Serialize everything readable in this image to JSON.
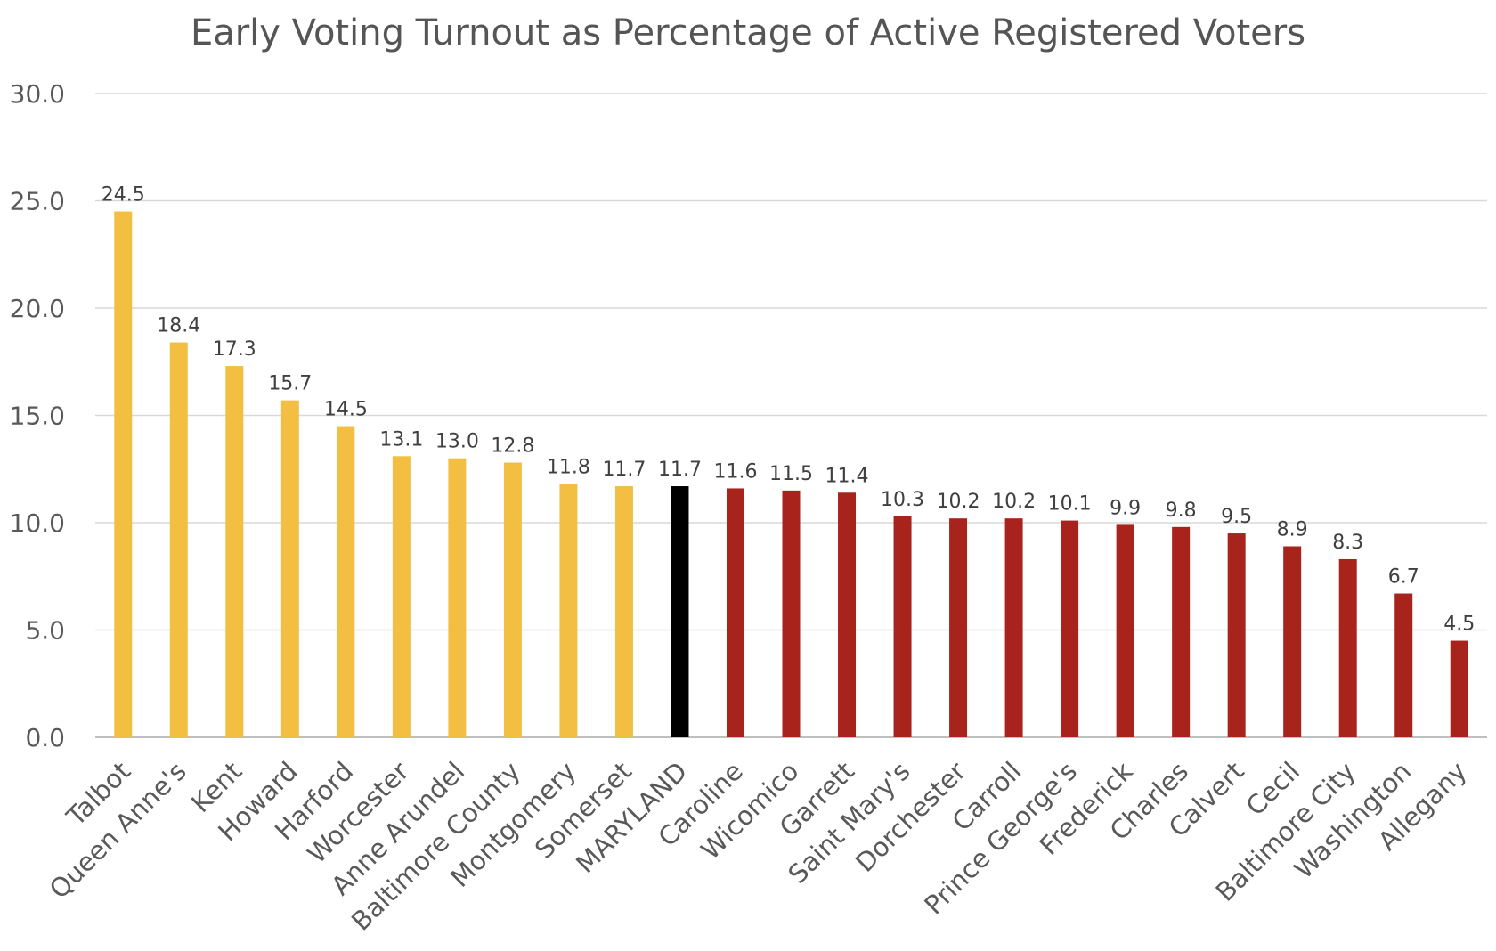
{
  "chart_data": {
    "type": "bar",
    "title": "Early Voting Turnout as Percentage of Active Registered Voters",
    "xlabel": "",
    "ylabel": "",
    "ylim": [
      0,
      30
    ],
    "yticks": [
      "0.0",
      "5.0",
      "10.0",
      "15.0",
      "20.0",
      "25.0",
      "30.0"
    ],
    "grid": true,
    "legend": "none",
    "colors": {
      "above_state": "#F2BF43",
      "state": "#000000",
      "below_state": "#A8231C"
    },
    "categories": [
      "Talbot",
      "Queen Anne's",
      "Kent",
      "Howard",
      "Harford",
      "Worcester",
      "Anne Arundel",
      "Baltimore County",
      "Montgomery",
      "Somerset",
      "MARYLAND",
      "Caroline",
      "Wicomico",
      "Garrett",
      "Saint Mary's",
      "Dorchester",
      "Carroll",
      "Prince George's",
      "Frederick",
      "Charles",
      "Calvert",
      "Cecil",
      "Baltimore City",
      "Washington",
      "Allegany"
    ],
    "values": [
      24.5,
      18.4,
      17.3,
      15.7,
      14.5,
      13.1,
      13.0,
      12.8,
      11.8,
      11.7,
      11.7,
      11.6,
      11.5,
      11.4,
      10.3,
      10.2,
      10.2,
      10.1,
      9.9,
      9.8,
      9.5,
      8.9,
      8.3,
      6.7,
      4.5
    ],
    "data_labels": [
      "24.5",
      "18.4",
      "17.3",
      "15.7",
      "14.5",
      "13.1",
      "13.0",
      "12.8",
      "11.8",
      "11.7",
      "11.7",
      "11.6",
      "11.5",
      "11.4",
      "10.3",
      "10.2",
      "10.2",
      "10.1",
      "9.9",
      "9.8",
      "9.5",
      "8.9",
      "8.3",
      "6.7",
      "4.5"
    ],
    "bar_groups": [
      "above_state",
      "above_state",
      "above_state",
      "above_state",
      "above_state",
      "above_state",
      "above_state",
      "above_state",
      "above_state",
      "above_state",
      "state",
      "below_state",
      "below_state",
      "below_state",
      "below_state",
      "below_state",
      "below_state",
      "below_state",
      "below_state",
      "below_state",
      "below_state",
      "below_state",
      "below_state",
      "below_state",
      "below_state"
    ]
  }
}
